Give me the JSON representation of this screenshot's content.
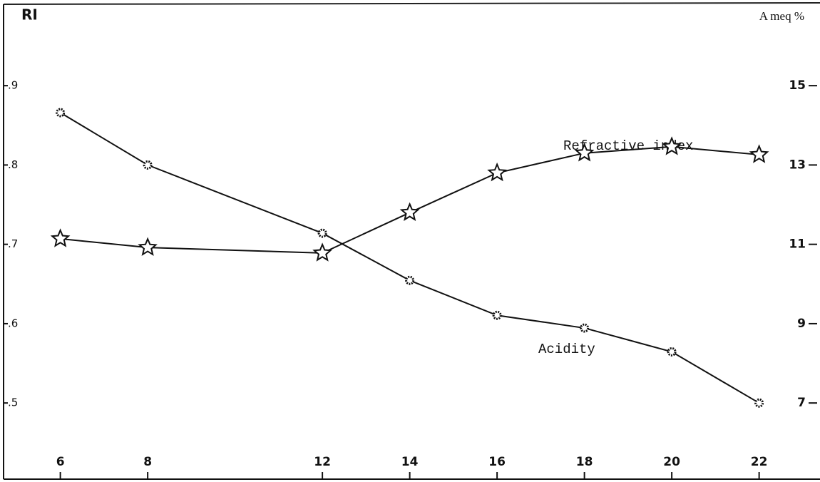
{
  "chart_data": {
    "type": "line",
    "y_axis_label": "RI",
    "y2_axis_label": "A meq %",
    "annotations": [
      "Refractive index",
      "Acidity"
    ],
    "x": [
      6,
      8,
      12,
      14,
      16,
      18,
      20,
      22
    ],
    "series": [
      {
        "name": "Refractive index",
        "color": "#111111",
        "marker": "star",
        "values": [
          0.707,
          0.696,
          0.689,
          0.74,
          0.79,
          0.815,
          0.823,
          0.813
        ]
      },
      {
        "name": "Acidity",
        "color": "#111111",
        "marker": "dot",
        "axis": "y2",
        "values": [
          14.32,
          13.0,
          11.28,
          10.09,
          9.21,
          8.89,
          8.29,
          7.0
        ]
      }
    ],
    "xlim": [
      4.7,
      23.1
    ],
    "xticks": [
      6,
      8,
      12,
      14,
      16,
      18,
      20,
      22
    ],
    "ylim": [
      0.404,
      0.99
    ],
    "yticks": [
      {
        "value": 0.9,
        "label": ".9"
      },
      {
        "value": 0.8,
        "label": ".8"
      },
      {
        "value": 0.7,
        "label": ".7"
      },
      {
        "value": 0.6,
        "label": ".6"
      },
      {
        "value": 0.5,
        "label": ".5"
      }
    ],
    "y2lim": [
      5.08,
      16.8
    ],
    "y2ticks": [
      15,
      13,
      11,
      9,
      7
    ],
    "grid": false
  }
}
